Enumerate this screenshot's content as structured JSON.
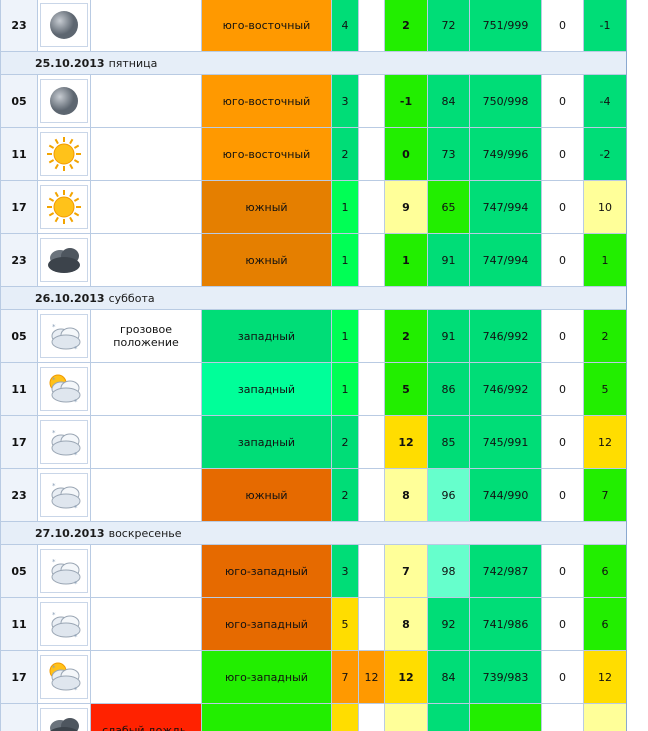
{
  "colors": {
    "orange": "#ff9900",
    "dark_orange": "#e57f00",
    "rust": "#e66a00",
    "teal_green": "#00dd77",
    "mint": "#00ff99",
    "lime": "#22ee00",
    "bright_green": "#00ff55",
    "light_yellow": "#ffff99",
    "gold": "#ffdd00",
    "red": "#ff2200"
  },
  "days": [
    {
      "date": "",
      "weekday": "",
      "rows": [
        {
          "hour": "23",
          "icon": "overcast-icon",
          "phenomenon": "",
          "wind_dir": "юго-восточный",
          "wind_speed": "4",
          "gust": "",
          "temp": "2",
          "humidity": "72",
          "pressure": "751/999",
          "precip": "0",
          "feels": "-1"
        }
      ]
    },
    {
      "date": "25.10.2013",
      "weekday": "пятница",
      "rows": [
        {
          "hour": "05",
          "icon": "overcast-icon",
          "phenomenon": "",
          "wind_dir": "юго-восточный",
          "wind_speed": "3",
          "gust": "",
          "temp": "-1",
          "humidity": "84",
          "pressure": "750/998",
          "precip": "0",
          "feels": "-4"
        },
        {
          "hour": "11",
          "icon": "sun-icon",
          "phenomenon": "",
          "wind_dir": "юго-восточный",
          "wind_speed": "2",
          "gust": "",
          "temp": "0",
          "humidity": "73",
          "pressure": "749/996",
          "precip": "0",
          "feels": "-2"
        },
        {
          "hour": "17",
          "icon": "sun-icon",
          "phenomenon": "",
          "wind_dir": "южный",
          "wind_speed": "1",
          "gust": "",
          "temp": "9",
          "humidity": "65",
          "pressure": "747/994",
          "precip": "0",
          "feels": "10"
        },
        {
          "hour": "23",
          "icon": "dark-clouds-icon",
          "phenomenon": "",
          "wind_dir": "южный",
          "wind_speed": "1",
          "gust": "",
          "temp": "1",
          "humidity": "91",
          "pressure": "747/994",
          "precip": "0",
          "feels": "1"
        }
      ]
    },
    {
      "date": "26.10.2013",
      "weekday": "суббота",
      "rows": [
        {
          "hour": "05",
          "icon": "cloudy-snow-icon",
          "phenomenon": "грозовое положение",
          "wind_dir": "западный",
          "wind_speed": "1",
          "gust": "",
          "temp": "2",
          "humidity": "91",
          "pressure": "746/992",
          "precip": "0",
          "feels": "2"
        },
        {
          "hour": "11",
          "icon": "sun-cloud-snow-icon",
          "phenomenon": "",
          "wind_dir": "западный",
          "wind_speed": "1",
          "gust": "",
          "temp": "5",
          "humidity": "86",
          "pressure": "746/992",
          "precip": "0",
          "feels": "5"
        },
        {
          "hour": "17",
          "icon": "cloudy-snow-icon",
          "phenomenon": "",
          "wind_dir": "западный",
          "wind_speed": "2",
          "gust": "",
          "temp": "12",
          "humidity": "85",
          "pressure": "745/991",
          "precip": "0",
          "feels": "12"
        },
        {
          "hour": "23",
          "icon": "cloudy-snow-icon",
          "phenomenon": "",
          "wind_dir": "южный",
          "wind_speed": "2",
          "gust": "",
          "temp": "8",
          "humidity": "96",
          "pressure": "744/990",
          "precip": "0",
          "feels": "7"
        }
      ]
    },
    {
      "date": "27.10.2013",
      "weekday": "воскресенье",
      "rows": [
        {
          "hour": "05",
          "icon": "cloudy-snow-icon",
          "phenomenon": "",
          "wind_dir": "юго-западный",
          "wind_speed": "3",
          "gust": "",
          "temp": "7",
          "humidity": "98",
          "pressure": "742/987",
          "precip": "0",
          "feels": "6"
        },
        {
          "hour": "11",
          "icon": "cloudy-snow-icon",
          "phenomenon": "",
          "wind_dir": "юго-западный",
          "wind_speed": "5",
          "gust": "",
          "temp": "8",
          "humidity": "92",
          "pressure": "741/986",
          "precip": "0",
          "feels": "6"
        },
        {
          "hour": "17",
          "icon": "sun-cloud-snow-icon",
          "phenomenon": "",
          "wind_dir": "юго-западный",
          "wind_speed": "7",
          "gust": "12",
          "temp": "12",
          "humidity": "84",
          "pressure": "739/983",
          "precip": "0",
          "feels": "12"
        },
        {
          "hour": "",
          "icon": "dark-clouds-icon",
          "phenomenon": "слабый дождь,",
          "wind_dir": "",
          "wind_speed": "",
          "gust": "",
          "temp": "",
          "humidity": "",
          "pressure": "",
          "precip": "",
          "feels": ""
        }
      ]
    }
  ]
}
